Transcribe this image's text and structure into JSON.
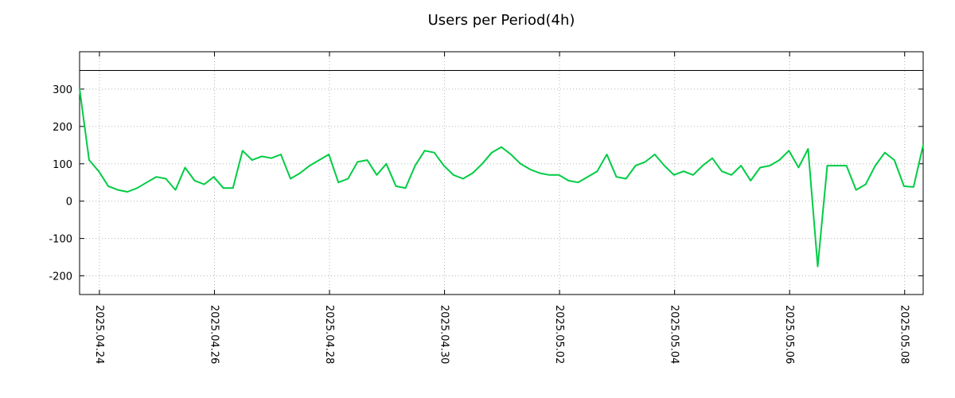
{
  "chart_data": {
    "type": "line",
    "title": "Users per Period(4h)",
    "series_name": "users-per-period",
    "line_color": "#00cc44",
    "threshold_color": "#000000",
    "grid_color": "#b3b3b3",
    "period_hours": 4,
    "grid": true,
    "legend": "none",
    "x_range_days": [
      0,
      14.667
    ],
    "ylim": [
      -250,
      400
    ],
    "y_ticks": [
      -200,
      -100,
      0,
      100,
      200,
      300
    ],
    "y_tick_labels": [
      "-200",
      "-100",
      "0",
      "100",
      "200",
      "300"
    ],
    "x_tick_positions_days": [
      0.345,
      2.345,
      4.345,
      6.345,
      8.345,
      10.345,
      12.345,
      14.345
    ],
    "x_tick_labels": [
      "2025.04.24",
      "2025.04.26",
      "2025.04.28",
      "2025.04.30",
      "2025.05.02",
      "2025.05.04",
      "2025.05.06",
      "2025.05.08"
    ],
    "hline": 350,
    "values": [
      300,
      110,
      80,
      40,
      30,
      25,
      35,
      50,
      65,
      60,
      30,
      90,
      55,
      45,
      65,
      35,
      35,
      135,
      110,
      120,
      115,
      125,
      60,
      75,
      95,
      110,
      125,
      50,
      60,
      105,
      110,
      70,
      100,
      40,
      35,
      95,
      135,
      130,
      95,
      70,
      60,
      75,
      100,
      130,
      145,
      125,
      100,
      85,
      75,
      70,
      70,
      55,
      50,
      65,
      80,
      125,
      65,
      60,
      95,
      105,
      125,
      95,
      70,
      80,
      70,
      95,
      115,
      80,
      70,
      95,
      55,
      90,
      95,
      110,
      135,
      90,
      140,
      -175,
      95,
      95,
      95,
      30,
      45,
      95,
      130,
      110,
      40,
      38,
      150
    ]
  }
}
